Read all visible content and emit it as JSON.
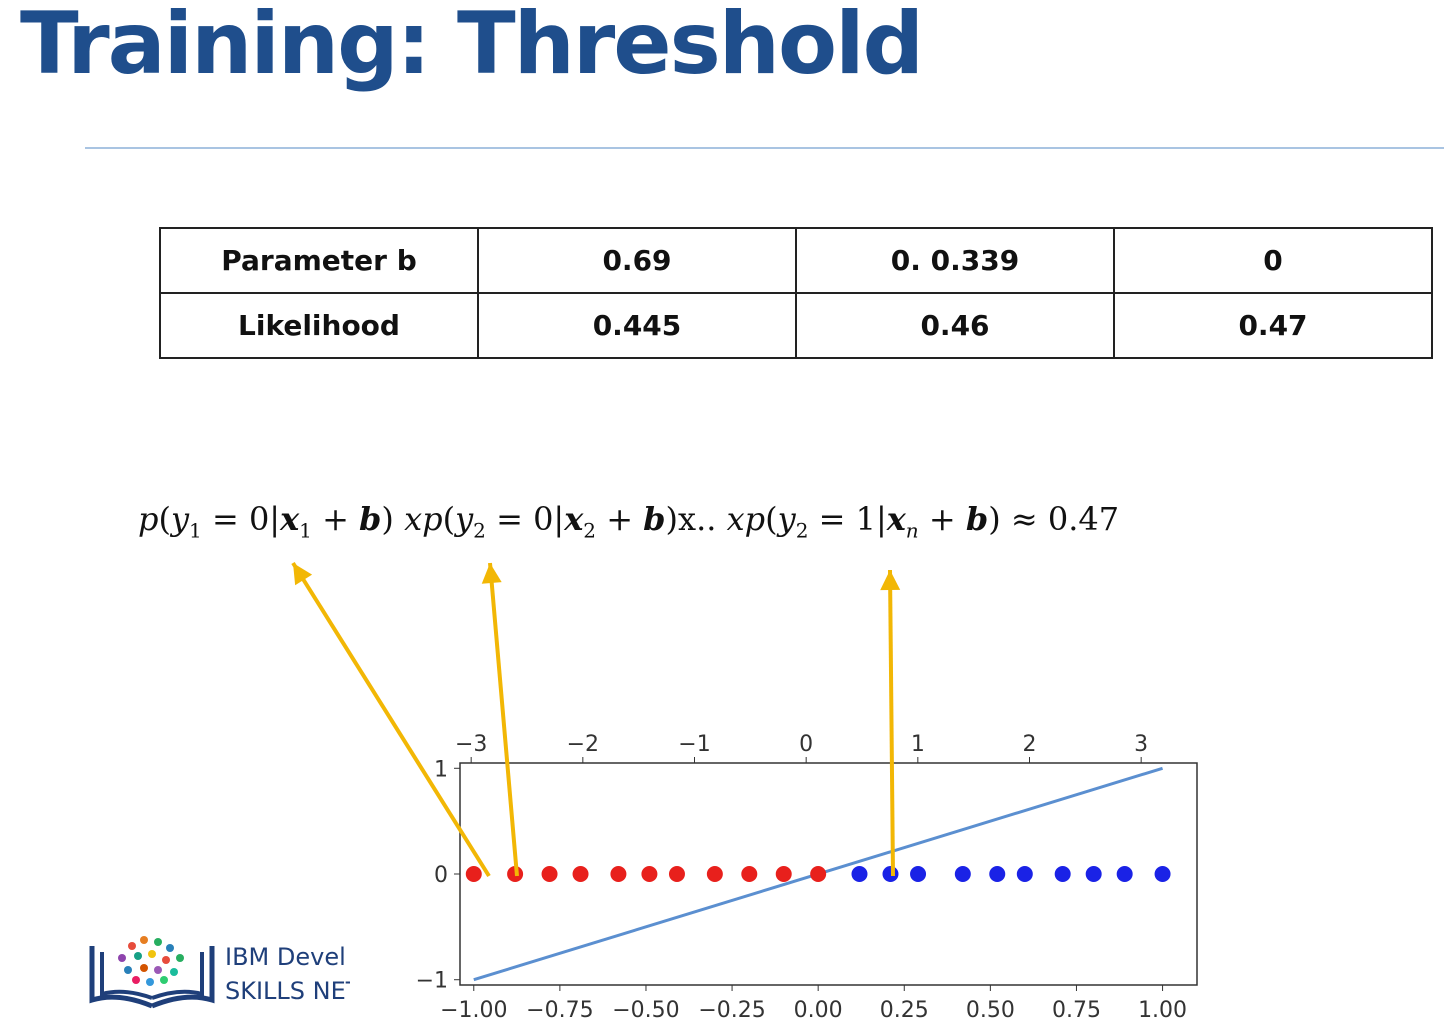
{
  "slide": {
    "title": "Training: Threshold"
  },
  "param_table": {
    "row1": [
      "Parameter b",
      "0.69",
      "0. 0.339",
      "0"
    ],
    "row2": [
      "Likelihood",
      "0.445",
      "0.46",
      "0.47"
    ]
  },
  "formula": {
    "p": "p",
    "y": "y",
    "x": "x",
    "b": "b",
    "eq": " = ",
    "zero": "0",
    "one": "1",
    "bar": "|",
    "plus": " + ",
    "open": "(",
    "close": ")",
    "sub1": "1",
    "sub2": "2",
    "subn": "n",
    "mult": "x..",
    "approx": " ≈ 0.47"
  },
  "logo": {
    "line1": "IBM Devel",
    "line2": "SKILLS NET"
  },
  "chart_data": {
    "type": "scatter",
    "top_axis_ticks": [
      "−3",
      "−2",
      "−1",
      "0",
      "1",
      "2",
      "3"
    ],
    "top_axis_range": [
      -3.1,
      3.5
    ],
    "bottom_axis_ticks": [
      "−1.00",
      "−0.75",
      "−0.50",
      "−0.25",
      "0.00",
      "0.25",
      "0.50",
      "0.75",
      "1.00"
    ],
    "x_range": [
      -1.04,
      1.1
    ],
    "y_ticks": [
      "1",
      "0",
      "−1"
    ],
    "ylim": [
      -1.05,
      1.05
    ],
    "colors": {
      "class0": "#e8201c",
      "class1": "#1a22e6",
      "line": "#5b8fd0",
      "arrow": "#f2b705"
    },
    "series": [
      {
        "values_x": [
          -1.0,
          -0.88,
          -0.78,
          -0.69,
          -0.58,
          -0.49,
          -0.41,
          -0.3,
          -0.2,
          -0.1,
          0.0
        ],
        "y": 0,
        "color": "#e8201c"
      },
      {
        "values_x": [
          0.12,
          0.21,
          0.29,
          0.42,
          0.52,
          0.6,
          0.71,
          0.8,
          0.89,
          1.0
        ],
        "y": 0,
        "color": "#1a22e6"
      }
    ],
    "line": {
      "x": [
        -1.0,
        1.0
      ],
      "y": [
        -1.0,
        1.0
      ]
    }
  }
}
